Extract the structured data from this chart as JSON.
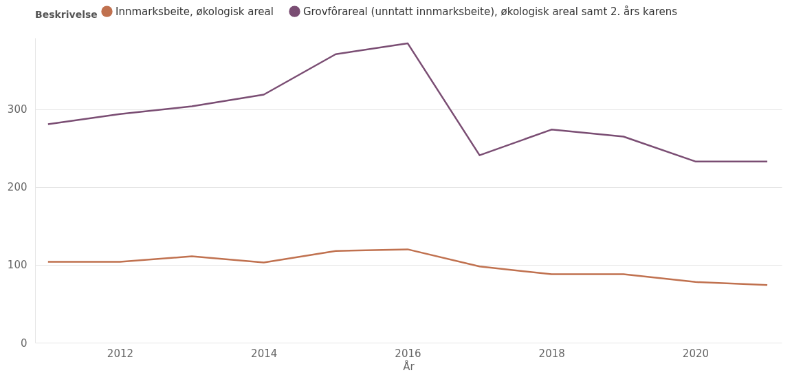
{
  "chart_data": {
    "type": "line",
    "xlabel": "År",
    "legend_title": "Beskrivelse",
    "legend": "top left",
    "grid": "y",
    "marker": "none",
    "line_style": "solid",
    "x": [
      2011,
      2012,
      2013,
      2014,
      2015,
      2016,
      2017,
      2018,
      2019,
      2020,
      2021
    ],
    "xlim": [
      2010.82,
      2021.2
    ],
    "xticks": [
      2012,
      2014,
      2016,
      2018,
      2020
    ],
    "ylim": [
      0,
      392
    ],
    "yticks": [
      0,
      100,
      200,
      300
    ],
    "series": [
      {
        "name": "Innmarksbeite, økologisk areal",
        "color": "#c0714f",
        "values": [
          104,
          104,
          111,
          103,
          118,
          120,
          98,
          88,
          88,
          78,
          74
        ]
      },
      {
        "name": "Grovfôrareal (unntatt innmarksbeite), økologisk areal samt 2. års karens",
        "color": "#7a4d73",
        "values": [
          281,
          294,
          304,
          319,
          371,
          385,
          241,
          274,
          265,
          233,
          233
        ]
      }
    ]
  }
}
